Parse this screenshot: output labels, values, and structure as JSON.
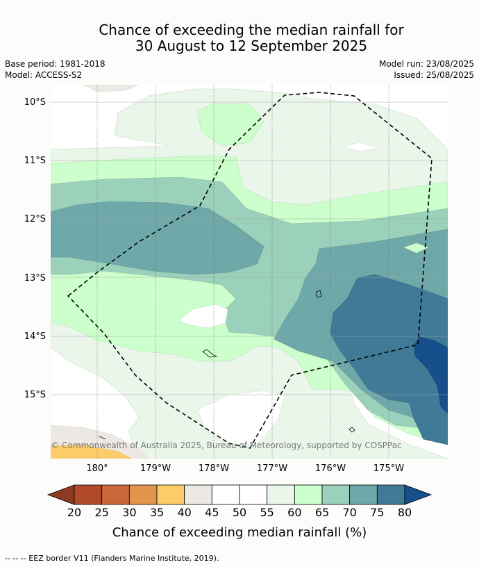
{
  "title": {
    "line1": "Chance of exceeding the median rainfall for",
    "line2": "30 August to 12 September 2025"
  },
  "meta": {
    "base_period": "Base period: 1981-2018",
    "model": "Model: ACCESS-S2",
    "model_run": "Model run: 23/08/2025",
    "issued": "Issued: 25/08/2025"
  },
  "map": {
    "lat_labels": [
      "10°S",
      "11°S",
      "12°S",
      "13°S",
      "14°S",
      "15°S"
    ],
    "lon_labels": [
      "180°",
      "179°W",
      "178°W",
      "177°W",
      "176°W",
      "175°W"
    ],
    "copyright": "© Commonwealth of Australia 2025, Bureau of Meteorology, supported by COSPPac"
  },
  "colorbar": {
    "ticks": [
      "20",
      "25",
      "30",
      "35",
      "40",
      "45",
      "50",
      "55",
      "60",
      "65",
      "70",
      "75",
      "80"
    ],
    "colors": [
      "#b14a2a",
      "#c9663a",
      "#e0954a",
      "#fdcc6a",
      "#ece9e4",
      "#ffffff",
      "#ffffff",
      "#eaf6ea",
      "#ccffcc",
      "#9bd0ba",
      "#6fa8a8",
      "#3f7a96"
    ],
    "under_color": "#8e3a22",
    "over_color": "#164f8c",
    "label": "Chance of exceeding median rainfall (%)"
  },
  "footer": "--  --  -- EEZ border V11 (Flanders Marine Institute, 2019)."
}
